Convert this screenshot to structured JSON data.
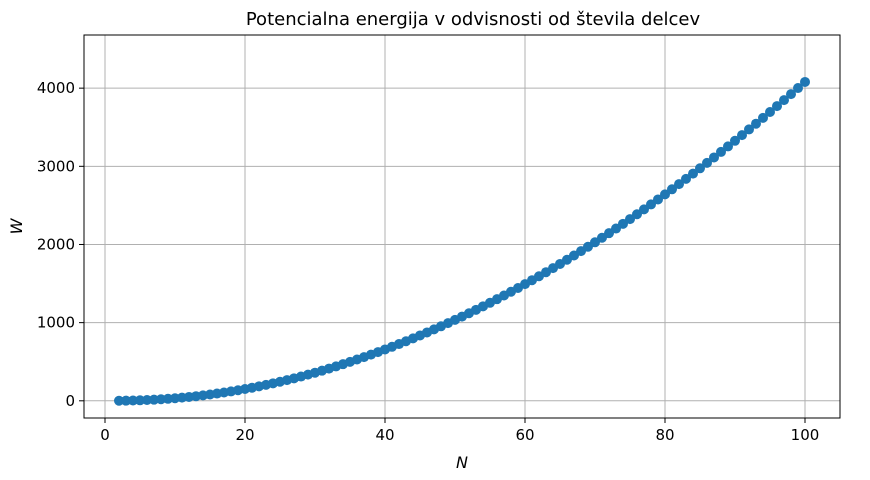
{
  "chart_data": {
    "type": "scatter",
    "title": "Potencialna energija v odvisnosti od števila delcev",
    "xlabel": "N",
    "ylabel": "W",
    "xlim": [
      -3,
      105
    ],
    "ylim": [
      -220,
      4680
    ],
    "xticks": [
      0,
      20,
      40,
      60,
      80,
      100
    ],
    "yticks": [
      0,
      1000,
      2000,
      3000,
      4000
    ],
    "grid": true,
    "marker_color": "#1f77b4",
    "series": [
      {
        "x": [
          2,
          3,
          4,
          5,
          6,
          7,
          8,
          9,
          10,
          11,
          12,
          13,
          14,
          15,
          16,
          17,
          18,
          19,
          20,
          21,
          22,
          23,
          24,
          25,
          26,
          27,
          28,
          29,
          30,
          31,
          32,
          33,
          34,
          35,
          36,
          37,
          38,
          39,
          40,
          41,
          42,
          43,
          44,
          45,
          46,
          47,
          48,
          49,
          50,
          51,
          52,
          53,
          54,
          55,
          56,
          57,
          58,
          59,
          60,
          61,
          62,
          63,
          64,
          65,
          66,
          67,
          68,
          69,
          70,
          71,
          72,
          73,
          74,
          75,
          76,
          77,
          78,
          79,
          80,
          81,
          82,
          83,
          84,
          85,
          86,
          87,
          88,
          89,
          90,
          91,
          92,
          93,
          94,
          95,
          96,
          97,
          98,
          99,
          100
        ],
        "y": [
          0.5,
          1.73,
          3.68,
          6.35,
          9.99,
          14.45,
          19.68,
          25.76,
          32.72,
          40.6,
          49.17,
          58.85,
          69.17,
          80.67,
          92.91,
          106.05,
          120.08,
          135.09,
          150.88,
          167.64,
          185.29,
          203.93,
          223.35,
          243.81,
          265.13,
          287.3,
          310.49,
          334.63,
          359.6,
          385.53,
          412.26,
          440.01,
          468.5,
          498.04,
          528.12,
          559.01,
          590.66,
          623.27,
          656.81,
          691.02,
          726.04,
          761.96,
          798.62,
          836.08,
          874.47,
          913.5,
          953.18,
          993.69,
          1035.08,
          1077.32,
          1120.2,
          1164.02,
          1208.6,
          1254.07,
          1300.32,
          1347.12,
          1395.11,
          1443.52,
          1492.9,
          1542.81,
          1593.72,
          1645.25,
          1697.58,
          1750.69,
          1804.53,
          1859.27,
          1914.75,
          1971.06,
          2028.06,
          2085.92,
          2144.57,
          2203.83,
          2264.11,
          2324.82,
          2386.68,
          2449.03,
          2512.42,
          2576.18,
          2640.99,
          2706.07,
          2772.38,
          2839.03,
          2906.76,
          2974.84,
          3044.07,
          3113.31,
          3183.96,
          3254.74,
          3326.64,
          3398.71,
          3471.96,
          3545.29,
          3619.89,
          3694.57,
          3770.44,
          3846.66,
          3923.76,
          4001.33,
          4079.09
        ]
      }
    ]
  }
}
